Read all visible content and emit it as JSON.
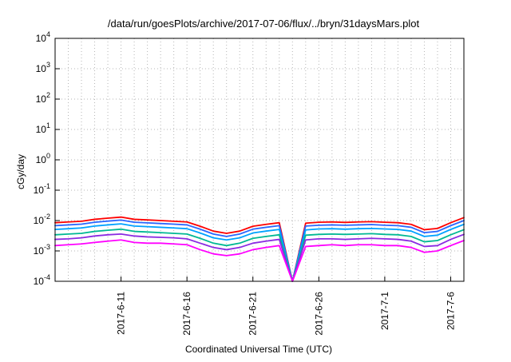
{
  "chart_data": {
    "type": "line",
    "title": "/data/run/goesPlots/archive/2017-07-06/flux/../bryn/31daysMars.plot",
    "xlabel": "Coordinated Universal Time (UTC)",
    "ylabel": "cGy/day",
    "y_scale": "log",
    "ylim": [
      0.0001,
      10000
    ],
    "xlim": [
      "2017-06-06",
      "2017-07-07"
    ],
    "x_ticks": [
      "2017-6-11",
      "2017-6-16",
      "2017-6-21",
      "2017-6-26",
      "2017-7-1",
      "2017-7-6"
    ],
    "x_tick_dates": [
      "2017-06-11",
      "2017-06-16",
      "2017-06-21",
      "2017-06-26",
      "2017-07-01",
      "2017-07-06"
    ],
    "y_ticks": [
      {
        "base": "10",
        "exp": "-4"
      },
      {
        "base": "10",
        "exp": "-3"
      },
      {
        "base": "10",
        "exp": "-2"
      },
      {
        "base": "10",
        "exp": "-1"
      },
      {
        "base": "10",
        "exp": "0"
      },
      {
        "base": "10",
        "exp": "1"
      },
      {
        "base": "10",
        "exp": "2"
      },
      {
        "base": "10",
        "exp": "3"
      },
      {
        "base": "10",
        "exp": "4"
      }
    ],
    "grid": true,
    "x": [
      "2017-06-06",
      "2017-06-07",
      "2017-06-08",
      "2017-06-09",
      "2017-06-10",
      "2017-06-11",
      "2017-06-12",
      "2017-06-13",
      "2017-06-14",
      "2017-06-15",
      "2017-06-16",
      "2017-06-17",
      "2017-06-18",
      "2017-06-19",
      "2017-06-20",
      "2017-06-21",
      "2017-06-22",
      "2017-06-23",
      "2017-06-24",
      "2017-06-25",
      "2017-06-26",
      "2017-06-27",
      "2017-06-28",
      "2017-06-29",
      "2017-06-30",
      "2017-07-01",
      "2017-07-02",
      "2017-07-03",
      "2017-07-04",
      "2017-07-05",
      "2017-07-06",
      "2017-07-07"
    ],
    "series": [
      {
        "color": "#ff0000",
        "values": [
          0.0085,
          0.009,
          0.0095,
          0.011,
          0.012,
          0.013,
          0.011,
          0.0105,
          0.01,
          0.0095,
          0.009,
          0.0065,
          0.0045,
          0.0038,
          0.0045,
          0.0065,
          0.0075,
          0.0085,
          0.0001,
          0.0082,
          0.0088,
          0.009,
          0.0087,
          0.009,
          0.0092,
          0.0088,
          0.0085,
          0.0075,
          0.005,
          0.0055,
          0.0085,
          0.0125
        ]
      },
      {
        "color": "#2a66ff",
        "values": [
          0.0068,
          0.0072,
          0.0076,
          0.0088,
          0.0096,
          0.0104,
          0.0088,
          0.0084,
          0.008,
          0.0076,
          0.0072,
          0.0052,
          0.0036,
          0.003,
          0.0036,
          0.0052,
          0.006,
          0.0068,
          0.0001,
          0.0066,
          0.007,
          0.0072,
          0.007,
          0.0072,
          0.0074,
          0.007,
          0.0068,
          0.006,
          0.004,
          0.0044,
          0.0068,
          0.01
        ]
      },
      {
        "color": "#00a2ff",
        "values": [
          0.0051,
          0.0054,
          0.0057,
          0.0066,
          0.0072,
          0.0078,
          0.0066,
          0.0063,
          0.006,
          0.0057,
          0.0054,
          0.0039,
          0.0027,
          0.0023,
          0.0027,
          0.0039,
          0.0045,
          0.0051,
          0.0001,
          0.0049,
          0.0053,
          0.0054,
          0.0052,
          0.0054,
          0.0055,
          0.0053,
          0.0051,
          0.0045,
          0.003,
          0.0033,
          0.0051,
          0.0075
        ]
      },
      {
        "color": "#00b894",
        "values": [
          0.0034,
          0.0036,
          0.0038,
          0.0044,
          0.0048,
          0.0052,
          0.0044,
          0.0042,
          0.004,
          0.0038,
          0.0036,
          0.0026,
          0.0018,
          0.0015,
          0.0018,
          0.0026,
          0.003,
          0.0034,
          0.0001,
          0.0033,
          0.0035,
          0.0036,
          0.0035,
          0.0036,
          0.0037,
          0.0035,
          0.0034,
          0.003,
          0.002,
          0.0022,
          0.0034,
          0.005
        ]
      },
      {
        "color": "#8a2be2",
        "values": [
          0.0024,
          0.0025,
          0.0027,
          0.0031,
          0.0034,
          0.0036,
          0.0031,
          0.0029,
          0.0028,
          0.0027,
          0.0025,
          0.0018,
          0.0013,
          0.0011,
          0.0013,
          0.0018,
          0.0021,
          0.0024,
          0.0001,
          0.0023,
          0.0025,
          0.0025,
          0.0024,
          0.0025,
          0.0026,
          0.0025,
          0.0024,
          0.0021,
          0.0014,
          0.0015,
          0.0024,
          0.0035
        ]
      },
      {
        "color": "#ff00ff",
        "values": [
          0.0015,
          0.0016,
          0.0017,
          0.0019,
          0.0021,
          0.0023,
          0.0019,
          0.0018,
          0.0018,
          0.0017,
          0.0016,
          0.0011,
          0.0008,
          0.0007,
          0.0008,
          0.0011,
          0.0013,
          0.0015,
          0.0001,
          0.0014,
          0.0015,
          0.0016,
          0.0015,
          0.0016,
          0.0016,
          0.0015,
          0.0015,
          0.0013,
          0.0009,
          0.001,
          0.0015,
          0.0022
        ]
      }
    ]
  }
}
